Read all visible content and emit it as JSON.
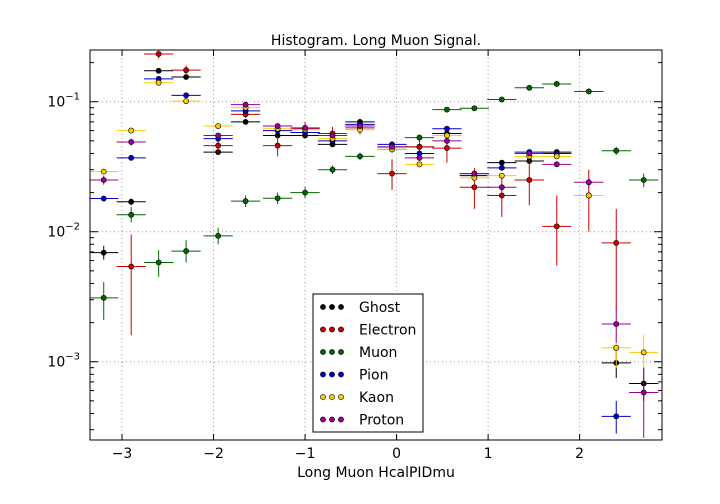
{
  "chart_data": {
    "type": "scatter",
    "title": "Histogram. Long Muon Signal.",
    "xlabel": "Long Muon HcalPIDmu",
    "ylabel": "",
    "xlim": [
      -3.35,
      2.9
    ],
    "ylim": [
      0.00025,
      0.25
    ],
    "yscale": "log",
    "grid": true,
    "legend_position": "lower-center",
    "x_ticks": [
      -3,
      -2,
      -1,
      0,
      1,
      2
    ],
    "x_tick_labels": [
      "−3",
      "−2",
      "−1",
      "0",
      "1",
      "2"
    ],
    "y_ticks": [
      0.001,
      0.01,
      0.1
    ],
    "y_tick_labels": [
      {
        "base": "10",
        "exp": "−3"
      },
      {
        "base": "10",
        "exp": "−2"
      },
      {
        "base": "10",
        "exp": "−1"
      }
    ],
    "bin_halfwidth": 0.16,
    "series": [
      {
        "name": "Ghost",
        "color": "#000000",
        "points": [
          {
            "x": -3.2,
            "y": 0.0069,
            "err": [
              0.0061,
              0.0078
            ]
          },
          {
            "x": -2.9,
            "y": 0.017,
            "err": [
              0.016,
              0.018
            ]
          },
          {
            "x": -2.6,
            "y": 0.173
          },
          {
            "x": -2.3,
            "y": 0.155
          },
          {
            "x": -1.95,
            "y": 0.041
          },
          {
            "x": -1.65,
            "y": 0.07
          },
          {
            "x": -1.3,
            "y": 0.055
          },
          {
            "x": -1.0,
            "y": 0.055
          },
          {
            "x": -0.7,
            "y": 0.047
          },
          {
            "x": -0.4,
            "y": 0.07
          },
          {
            "x": -0.05,
            "y": 0.045
          },
          {
            "x": 0.25,
            "y": 0.045
          },
          {
            "x": 0.55,
            "y": 0.057
          },
          {
            "x": 0.85,
            "y": 0.027
          },
          {
            "x": 1.15,
            "y": 0.034
          },
          {
            "x": 1.45,
            "y": 0.035
          },
          {
            "x": 1.75,
            "y": 0.041
          },
          {
            "x": 2.1,
            "y": 0.019
          },
          {
            "x": 2.4,
            "y": 0.00098,
            "err": [
              0.00075,
              0.00125
            ]
          },
          {
            "x": 2.7,
            "y": 0.00068,
            "err": [
              0.0005,
              0.0009
            ]
          }
        ]
      },
      {
        "name": "Electron",
        "color": "#cc0000",
        "points": [
          {
            "x": -2.9,
            "y": 0.0054,
            "err": [
              0.0016,
              0.0095
            ]
          },
          {
            "x": -2.6,
            "y": 0.233,
            "err": [
              0.215,
              0.25
            ]
          },
          {
            "x": -2.3,
            "y": 0.175,
            "err": [
              0.16,
              0.19
            ]
          },
          {
            "x": -1.95,
            "y": 0.046,
            "err": [
              0.04,
              0.052
            ]
          },
          {
            "x": -1.65,
            "y": 0.08,
            "err": [
              0.075,
              0.086
            ]
          },
          {
            "x": -1.3,
            "y": 0.046,
            "err": [
              0.038,
              0.054
            ]
          },
          {
            "x": -1.0,
            "y": 0.062,
            "err": [
              0.054,
              0.07
            ]
          },
          {
            "x": -0.7,
            "y": 0.057,
            "err": [
              0.05,
              0.064
            ]
          },
          {
            "x": -0.4,
            "y": 0.063,
            "err": [
              0.056,
              0.07
            ]
          },
          {
            "x": -0.05,
            "y": 0.028,
            "err": [
              0.021,
              0.036
            ]
          },
          {
            "x": 0.25,
            "y": 0.045,
            "err": [
              0.038,
              0.052
            ]
          },
          {
            "x": 0.55,
            "y": 0.044,
            "err": [
              0.034,
              0.055
            ]
          },
          {
            "x": 0.85,
            "y": 0.022,
            "err": [
              0.015,
              0.031
            ]
          },
          {
            "x": 1.15,
            "y": 0.019,
            "err": [
              0.013,
              0.028
            ]
          },
          {
            "x": 1.45,
            "y": 0.025,
            "err": [
              0.016,
              0.036
            ]
          },
          {
            "x": 1.75,
            "y": 0.011,
            "err": [
              0.0055,
              0.019
            ]
          },
          {
            "x": 2.1,
            "y": 0.019,
            "err": [
              0.01,
              0.03
            ]
          },
          {
            "x": 2.4,
            "y": 0.0082,
            "err": [
              0.0025,
              0.015
            ]
          }
        ]
      },
      {
        "name": "Muon",
        "color": "#006600",
        "points": [
          {
            "x": -3.2,
            "y": 0.0031,
            "err": [
              0.0021,
              0.0041
            ]
          },
          {
            "x": -2.9,
            "y": 0.0135,
            "err": [
              0.0118,
              0.0155
            ]
          },
          {
            "x": -2.6,
            "y": 0.0058,
            "err": [
              0.0045,
              0.0072
            ]
          },
          {
            "x": -2.3,
            "y": 0.0071,
            "err": [
              0.0058,
              0.0086
            ]
          },
          {
            "x": -1.95,
            "y": 0.0093,
            "err": [
              0.008,
              0.0107
            ]
          },
          {
            "x": -1.65,
            "y": 0.0172,
            "err": [
              0.0155,
              0.019
            ]
          },
          {
            "x": -1.3,
            "y": 0.0181,
            "err": [
              0.0163,
              0.02
            ]
          },
          {
            "x": -1.0,
            "y": 0.02,
            "err": [
              0.0182,
              0.022
            ]
          },
          {
            "x": -0.7,
            "y": 0.03,
            "err": [
              0.0278,
              0.0323
            ]
          },
          {
            "x": -0.4,
            "y": 0.038,
            "err": [
              0.0355,
              0.0406
            ]
          },
          {
            "x": -0.05,
            "y": 0.043,
            "err": [
              0.0405,
              0.0456
            ]
          },
          {
            "x": 0.25,
            "y": 0.053,
            "err": [
              0.05,
              0.056
            ]
          },
          {
            "x": 0.55,
            "y": 0.087,
            "err": [
              0.083,
              0.091
            ]
          },
          {
            "x": 0.85,
            "y": 0.089,
            "err": [
              0.085,
              0.093
            ]
          },
          {
            "x": 1.15,
            "y": 0.104,
            "err": [
              0.1,
              0.108
            ]
          },
          {
            "x": 1.45,
            "y": 0.128,
            "err": [
              0.123,
              0.133
            ]
          },
          {
            "x": 1.75,
            "y": 0.137,
            "err": [
              0.132,
              0.142
            ]
          },
          {
            "x": 2.1,
            "y": 0.12,
            "err": [
              0.115,
              0.125
            ]
          },
          {
            "x": 2.4,
            "y": 0.042,
            "err": [
              0.039,
              0.045
            ]
          },
          {
            "x": 2.7,
            "y": 0.025,
            "err": [
              0.022,
              0.028
            ]
          }
        ]
      },
      {
        "name": "Pion",
        "color": "#0000cc",
        "points": [
          {
            "x": -3.2,
            "y": 0.018
          },
          {
            "x": -2.9,
            "y": 0.037
          },
          {
            "x": -2.6,
            "y": 0.15
          },
          {
            "x": -2.3,
            "y": 0.112
          },
          {
            "x": -1.95,
            "y": 0.052
          },
          {
            "x": -1.65,
            "y": 0.085
          },
          {
            "x": -1.3,
            "y": 0.06
          },
          {
            "x": -1.0,
            "y": 0.058
          },
          {
            "x": -0.7,
            "y": 0.05
          },
          {
            "x": -0.4,
            "y": 0.067
          },
          {
            "x": -0.05,
            "y": 0.047
          },
          {
            "x": 0.25,
            "y": 0.04
          },
          {
            "x": 0.55,
            "y": 0.062
          },
          {
            "x": 0.85,
            "y": 0.028
          },
          {
            "x": 1.15,
            "y": 0.031
          },
          {
            "x": 1.45,
            "y": 0.041
          },
          {
            "x": 1.75,
            "y": 0.04
          },
          {
            "x": 2.1,
            "y": 0.019
          },
          {
            "x": 2.4,
            "y": 0.00038,
            "err": [
              0.00028,
              0.0005
            ]
          }
        ]
      },
      {
        "name": "Kaon",
        "color": "#ffcc00",
        "points": [
          {
            "x": -3.2,
            "y": 0.029
          },
          {
            "x": -2.9,
            "y": 0.06
          },
          {
            "x": -2.6,
            "y": 0.14
          },
          {
            "x": -2.3,
            "y": 0.101
          },
          {
            "x": -1.95,
            "y": 0.065
          },
          {
            "x": -1.65,
            "y": 0.09
          },
          {
            "x": -1.3,
            "y": 0.062
          },
          {
            "x": -1.0,
            "y": 0.061
          },
          {
            "x": -0.7,
            "y": 0.052
          },
          {
            "x": -0.4,
            "y": 0.061
          },
          {
            "x": -0.05,
            "y": 0.043
          },
          {
            "x": 0.25,
            "y": 0.033
          },
          {
            "x": 0.55,
            "y": 0.055
          },
          {
            "x": 0.85,
            "y": 0.026
          },
          {
            "x": 1.15,
            "y": 0.027
          },
          {
            "x": 1.45,
            "y": 0.038
          },
          {
            "x": 1.75,
            "y": 0.038
          },
          {
            "x": 2.1,
            "y": 0.019
          },
          {
            "x": 2.4,
            "y": 0.00128,
            "err": [
              0.0009,
              0.0017
            ]
          },
          {
            "x": 2.7,
            "y": 0.00118,
            "err": [
              0.0008,
              0.0016
            ]
          }
        ]
      },
      {
        "name": "Proton",
        "color": "#990099",
        "points": [
          {
            "x": -3.2,
            "y": 0.025,
            "err": [
              0.023,
              0.027
            ]
          },
          {
            "x": -2.9,
            "y": 0.049,
            "err": [
              0.046,
              0.052
            ]
          },
          {
            "x": -1.95,
            "y": 0.055
          },
          {
            "x": -1.65,
            "y": 0.095
          },
          {
            "x": -1.3,
            "y": 0.065
          },
          {
            "x": -1.0,
            "y": 0.063
          },
          {
            "x": -0.7,
            "y": 0.055
          },
          {
            "x": -0.4,
            "y": 0.065
          },
          {
            "x": -0.05,
            "y": 0.045
          },
          {
            "x": 0.25,
            "y": 0.037
          },
          {
            "x": 0.55,
            "y": 0.05
          },
          {
            "x": 0.85,
            "y": 0.028
          },
          {
            "x": 1.15,
            "y": 0.022
          },
          {
            "x": 1.45,
            "y": 0.04
          },
          {
            "x": 1.75,
            "y": 0.033
          },
          {
            "x": 2.1,
            "y": 0.024,
            "err": [
              0.022,
              0.026
            ]
          },
          {
            "x": 2.4,
            "y": 0.00195,
            "err": [
              0.0014,
              0.0026
            ]
          },
          {
            "x": 2.7,
            "y": 0.00058,
            "err": [
              0.00026,
              0.0009
            ]
          }
        ]
      }
    ]
  }
}
